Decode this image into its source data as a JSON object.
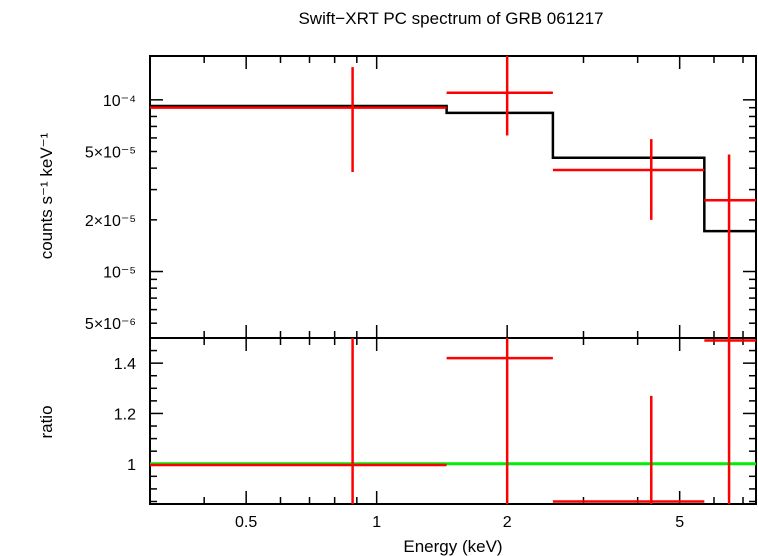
{
  "chart_data": {
    "type": "scatter",
    "title": "Swift−XRT PC spectrum of GRB 061217",
    "xlabel": "Energy (keV)",
    "x_scale": "log",
    "xlim": [
      0.3,
      7.5
    ],
    "x_tick_labels": [
      {
        "value": 0.5,
        "label": "0.5"
      },
      {
        "value": 1,
        "label": "1"
      },
      {
        "value": 2,
        "label": "2"
      },
      {
        "value": 5,
        "label": "5"
      }
    ],
    "panels": [
      {
        "name": "spectrum",
        "ylabel": "counts s⁻¹ keV⁻¹",
        "y_scale": "log",
        "ylim": [
          4.1e-06,
          0.00018
        ],
        "y_tick_labels": [
          {
            "value": 0.0001,
            "label": "10⁻⁴"
          },
          {
            "value": 5e-05,
            "label": "5×10⁻⁵"
          },
          {
            "value": 2e-05,
            "label": "2×10⁻⁵"
          },
          {
            "value": 1e-05,
            "label": "10⁻⁵"
          },
          {
            "value": 5e-06,
            "label": "5×10⁻⁶"
          }
        ],
        "data": {
          "color": "#ff0000",
          "points": [
            {
              "x_low": 0.3,
              "x": 0.88,
              "x_high": 1.45,
              "y": 9e-05,
              "y_low": 3.8e-05,
              "y_high": 0.000155
            },
            {
              "x_low": 1.45,
              "x": 2.0,
              "x_high": 2.55,
              "y": 0.00011,
              "y_low": 6.2e-05,
              "y_high": 0.00018
            },
            {
              "x_low": 2.55,
              "x": 4.3,
              "x_high": 5.7,
              "y": 3.9e-05,
              "y_low": 2e-05,
              "y_high": 5.9e-05
            },
            {
              "x_low": 5.7,
              "x": 6.5,
              "x_high": 7.5,
              "y": 2.6e-05,
              "y_low": 4.1e-06,
              "y_high": 4.8e-05
            }
          ]
        },
        "model": {
          "color": "#000000",
          "steps": [
            {
              "x_low": 0.3,
              "x_high": 1.45,
              "y": 9.2e-05
            },
            {
              "x_low": 1.45,
              "x_high": 2.55,
              "y": 8.4e-05
            },
            {
              "x_low": 2.55,
              "x_high": 5.7,
              "y": 4.6e-05
            },
            {
              "x_low": 5.7,
              "x_high": 7.5,
              "y": 1.72e-05
            }
          ]
        }
      },
      {
        "name": "ratio",
        "ylabel": "ratio",
        "y_scale": "linear",
        "ylim": [
          0.84,
          1.5
        ],
        "y_tick_labels": [
          {
            "value": 1,
            "label": "1"
          },
          {
            "value": 1.2,
            "label": "1.2"
          },
          {
            "value": 1.4,
            "label": "1.4"
          }
        ],
        "reference_line": {
          "y": 1,
          "color": "#00ee00"
        },
        "data": {
          "color": "#ff0000",
          "points": [
            {
              "x_low": 0.3,
              "x": 0.88,
              "x_high": 1.45,
              "y": 0.995,
              "y_low": 0.84,
              "y_high": 1.5
            },
            {
              "x_low": 1.45,
              "x": 2.0,
              "x_high": 2.55,
              "y": 1.42,
              "y_low": 0.84,
              "y_high": 1.5
            },
            {
              "x_low": 2.55,
              "x": 4.3,
              "x_high": 5.7,
              "y": 0.85,
              "y_low": 0.84,
              "y_high": 1.27
            },
            {
              "x_low": 5.7,
              "x": 6.5,
              "x_high": 7.5,
              "y": 1.49,
              "y_low": 0.84,
              "y_high": 1.5
            }
          ]
        }
      }
    ]
  }
}
